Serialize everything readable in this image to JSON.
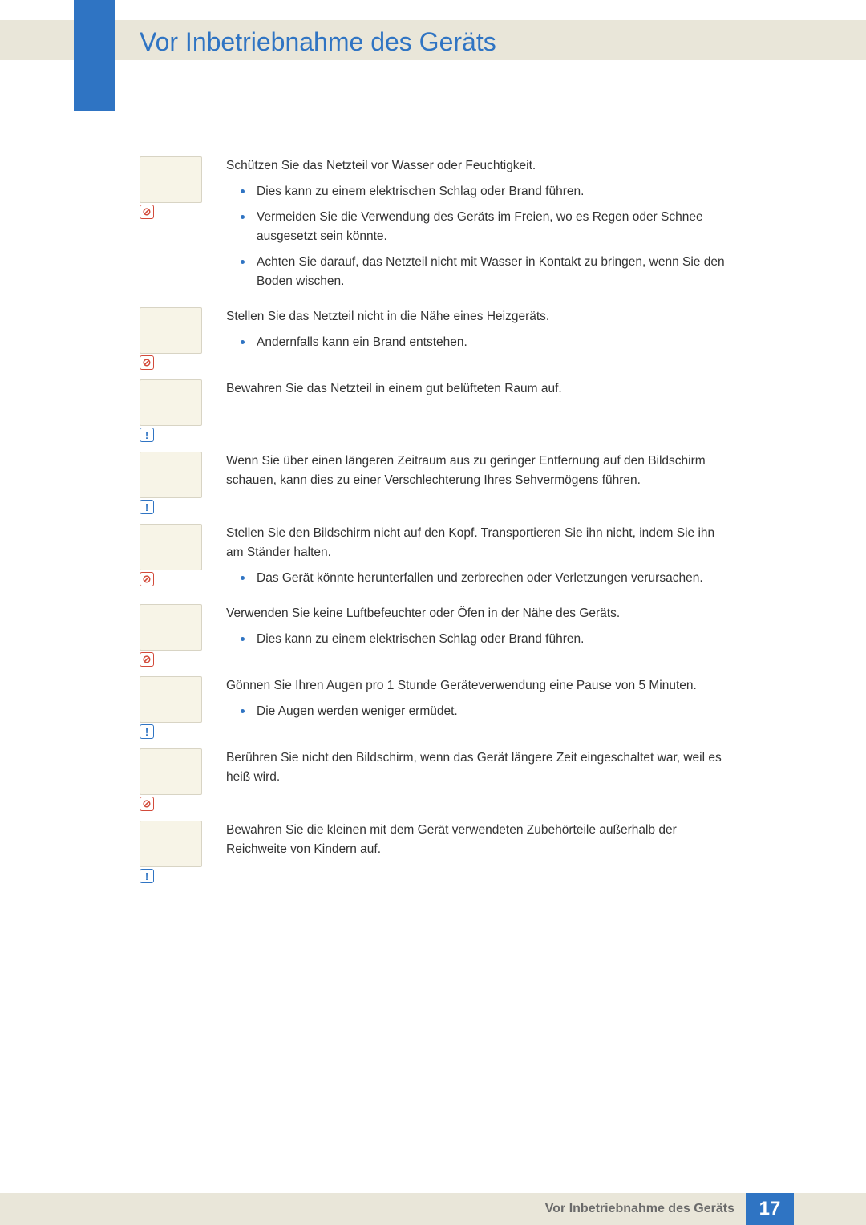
{
  "colors": {
    "accent": "#2f74c3",
    "band": "#e9e6d9",
    "prohibit": "#d24a3a",
    "illus_bg": "#f7f4e7",
    "text": "#333333",
    "footer_text": "#6b6b6b"
  },
  "page": {
    "title": "Vor Inbetriebnahme des Geräts",
    "footer_label": "Vor Inbetriebnahme des Geräts",
    "number": "17"
  },
  "items": [
    {
      "badge": "prohibit",
      "lead": "Schützen Sie das Netzteil vor Wasser oder Feuchtigkeit.",
      "bullets": [
        "Dies kann zu einem elektrischen Schlag oder Brand führen.",
        "Vermeiden Sie die Verwendung des Geräts im Freien, wo es Regen oder Schnee ausgesetzt sein könnte.",
        "Achten Sie darauf, das Netzteil nicht mit Wasser in Kontakt zu bringen, wenn Sie den Boden wischen."
      ]
    },
    {
      "badge": "prohibit",
      "lead": "Stellen Sie das Netzteil nicht in die Nähe eines Heizgeräts.",
      "bullets": [
        "Andernfalls kann ein Brand entstehen."
      ]
    },
    {
      "badge": "info",
      "lead": "Bewahren Sie das Netzteil in einem gut belüfteten Raum auf.",
      "bullets": []
    },
    {
      "badge": "info",
      "lead": "Wenn Sie über einen längeren Zeitraum aus zu geringer Entfernung auf den Bildschirm schauen, kann dies zu einer Verschlechterung Ihres Sehvermögens führen.",
      "bullets": []
    },
    {
      "badge": "prohibit",
      "lead": "Stellen Sie den Bildschirm nicht auf den Kopf. Transportieren Sie ihn nicht, indem Sie ihn am Ständer halten.",
      "bullets": [
        "Das Gerät könnte herunterfallen und zerbrechen oder Verletzungen verursachen."
      ]
    },
    {
      "badge": "prohibit",
      "lead": "Verwenden Sie keine Luftbefeuchter oder Öfen in der Nähe des Geräts.",
      "bullets": [
        "Dies kann zu einem elektrischen Schlag oder Brand führen."
      ]
    },
    {
      "badge": "info",
      "lead": "Gönnen Sie Ihren Augen pro 1 Stunde Geräteverwendung eine Pause von 5 Minuten.",
      "bullets": [
        "Die Augen werden weniger ermüdet."
      ]
    },
    {
      "badge": "prohibit",
      "lead": "Berühren Sie nicht den Bildschirm, wenn das Gerät längere Zeit eingeschaltet war, weil es heiß wird.",
      "bullets": []
    },
    {
      "badge": "info",
      "lead": "Bewahren Sie die kleinen mit dem Gerät verwendeten Zubehörteile außerhalb der Reichweite von Kindern auf.",
      "bullets": []
    }
  ]
}
